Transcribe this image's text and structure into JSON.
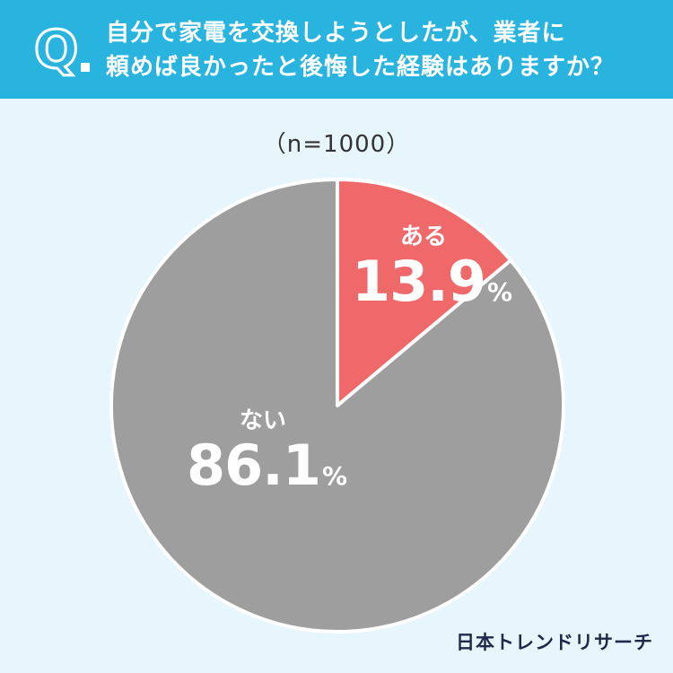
{
  "header": {
    "q_mark": "Q",
    "question_line1": "自分で家電を交換しようとしたが、業者に",
    "question_line2": "頼めば良かったと後悔した経験はありますか？"
  },
  "sample_size": "（n=1000）",
  "chart_data": {
    "type": "pie",
    "slices": [
      {
        "label": "ある",
        "value": 13.9,
        "color": "#f0696a"
      },
      {
        "label": "ない",
        "value": 86.1,
        "color": "#9e9e9e"
      }
    ],
    "unit": "%",
    "start_angle": "12 o'clock",
    "direction": "clockwise"
  },
  "labels": {
    "aru_name": "ある",
    "aru_value": "13.9",
    "nai_name": "ない",
    "nai_value": "86.1",
    "pct": "%"
  },
  "logo": "日本トレンドリサーチ",
  "colors": {
    "header_bg": "#29b4e0",
    "page_bg": "#e6f6fc",
    "aru": "#f0696a",
    "nai": "#9e9e9e"
  }
}
